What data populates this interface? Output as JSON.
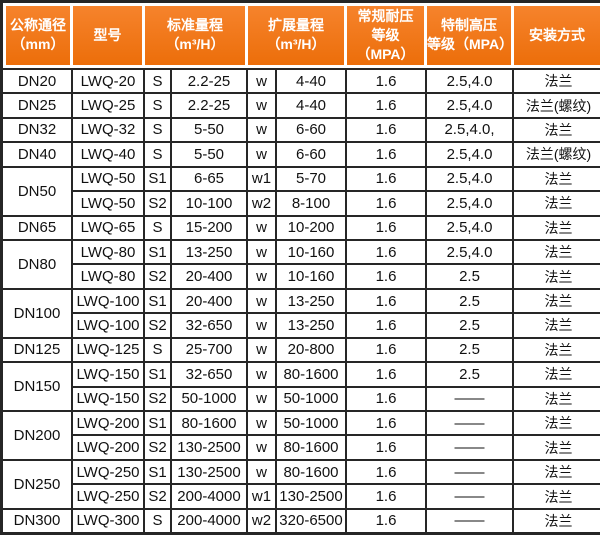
{
  "colors": {
    "header_gradient_top": "#f6832c",
    "header_gradient_bottom": "#ec6e0a",
    "header_text": "#ffffff",
    "grid_line": "#262626",
    "body_text": "#111111"
  },
  "chart_data": {
    "type": "table",
    "title": "",
    "column_labels": [
      "公称通径（mm）",
      "型号",
      "标准量程（m³/H）",
      "扩展量程（m³/H）",
      "常规耐压等级（MPA）",
      "特制高压等级（MPA）",
      "安装方式"
    ],
    "columns": [
      {
        "line1": "公称通径",
        "line2": "（mm）",
        "body_cols": 1
      },
      {
        "line1": "型号",
        "line2": "",
        "body_cols": 1
      },
      {
        "line1": "标准量程",
        "line2": "（m³/H）",
        "body_cols": 2
      },
      {
        "line1": "扩展量程",
        "line2": "（m³/H）",
        "body_cols": 2
      },
      {
        "line1": "常规耐压",
        "line2": "等级（MPA）",
        "body_cols": 1
      },
      {
        "line1": "特制高压",
        "line2": "等级（MPA）",
        "body_cols": 1
      },
      {
        "line1": "安装方式",
        "line2": "",
        "body_cols": 1
      }
    ],
    "rows": [
      {
        "dn": "DN20",
        "dn_span": 1,
        "model": "LWQ-20",
        "range_code": "S",
        "std_range": "2.2-25",
        "ext_code": "w",
        "ext_range": "4-40",
        "normal_mpa": "1.6",
        "high_mpa": "2.5,4.0",
        "install": "法兰"
      },
      {
        "dn": "DN25",
        "dn_span": 1,
        "model": "LWQ-25",
        "range_code": "S",
        "std_range": "2.2-25",
        "ext_code": "w",
        "ext_range": "4-40",
        "normal_mpa": "1.6",
        "high_mpa": "2.5,4.0",
        "install": "法兰(螺纹)"
      },
      {
        "dn": "DN32",
        "dn_span": 1,
        "model": "LWQ-32",
        "range_code": "S",
        "std_range": "5-50",
        "ext_code": "w",
        "ext_range": "6-60",
        "normal_mpa": "1.6",
        "high_mpa": "2.5,4.0,",
        "install": "法兰"
      },
      {
        "dn": "DN40",
        "dn_span": 1,
        "model": "LWQ-40",
        "range_code": "S",
        "std_range": "5-50",
        "ext_code": "w",
        "ext_range": "6-60",
        "normal_mpa": "1.6",
        "high_mpa": "2.5,4.0",
        "install": "法兰(螺纹)"
      },
      {
        "dn": "DN50",
        "dn_span": 2,
        "model": "LWQ-50",
        "range_code": "S1",
        "std_range": "6-65",
        "ext_code": "w1",
        "ext_range": "5-70",
        "normal_mpa": "1.6",
        "high_mpa": "2.5,4.0",
        "install": "法兰"
      },
      {
        "dn": null,
        "dn_span": 0,
        "model": "LWQ-50",
        "range_code": "S2",
        "std_range": "10-100",
        "ext_code": "w2",
        "ext_range": "8-100",
        "normal_mpa": "1.6",
        "high_mpa": "2.5,4.0",
        "install": "法兰"
      },
      {
        "dn": "DN65",
        "dn_span": 1,
        "model": "LWQ-65",
        "range_code": "S",
        "std_range": "15-200",
        "ext_code": "w",
        "ext_range": "10-200",
        "normal_mpa": "1.6",
        "high_mpa": "2.5,4.0",
        "install": "法兰"
      },
      {
        "dn": "DN80",
        "dn_span": 2,
        "model": "LWQ-80",
        "range_code": "S1",
        "std_range": "13-250",
        "ext_code": "w",
        "ext_range": "10-160",
        "normal_mpa": "1.6",
        "high_mpa": "2.5,4.0",
        "install": "法兰"
      },
      {
        "dn": null,
        "dn_span": 0,
        "model": "LWQ-80",
        "range_code": "S2",
        "std_range": "20-400",
        "ext_code": "w",
        "ext_range": "10-160",
        "normal_mpa": "1.6",
        "high_mpa": "2.5",
        "install": "法兰"
      },
      {
        "dn": "DN100",
        "dn_span": 2,
        "model": "LWQ-100",
        "range_code": "S1",
        "std_range": "20-400",
        "ext_code": "w",
        "ext_range": "13-250",
        "normal_mpa": "1.6",
        "high_mpa": "2.5",
        "install": "法兰"
      },
      {
        "dn": null,
        "dn_span": 0,
        "model": "LWQ-100",
        "range_code": "S2",
        "std_range": "32-650",
        "ext_code": "w",
        "ext_range": "13-250",
        "normal_mpa": "1.6",
        "high_mpa": "2.5",
        "install": "法兰"
      },
      {
        "dn": "DN125",
        "dn_span": 1,
        "model": "LWQ-125",
        "range_code": "S",
        "std_range": "25-700",
        "ext_code": "w",
        "ext_range": "20-800",
        "normal_mpa": "1.6",
        "high_mpa": "2.5",
        "install": "法兰"
      },
      {
        "dn": "DN150",
        "dn_span": 2,
        "model": "LWQ-150",
        "range_code": "S1",
        "std_range": "32-650",
        "ext_code": "w",
        "ext_range": "80-1600",
        "normal_mpa": "1.6",
        "high_mpa": "2.5",
        "install": "法兰"
      },
      {
        "dn": null,
        "dn_span": 0,
        "model": "LWQ-150",
        "range_code": "S2",
        "std_range": "50-1000",
        "ext_code": "w",
        "ext_range": "50-1000",
        "normal_mpa": "1.6",
        "high_mpa": "——",
        "install": "法兰"
      },
      {
        "dn": "DN200",
        "dn_span": 2,
        "model": "LWQ-200",
        "range_code": "S1",
        "std_range": "80-1600",
        "ext_code": "w",
        "ext_range": "50-1000",
        "normal_mpa": "1.6",
        "high_mpa": "——",
        "install": "法兰"
      },
      {
        "dn": null,
        "dn_span": 0,
        "model": "LWQ-200",
        "range_code": "S2",
        "std_range": "130-2500",
        "ext_code": "w",
        "ext_range": "80-1600",
        "normal_mpa": "1.6",
        "high_mpa": "——",
        "install": "法兰"
      },
      {
        "dn": "DN250",
        "dn_span": 2,
        "model": "LWQ-250",
        "range_code": "S1",
        "std_range": "130-2500",
        "ext_code": "w",
        "ext_range": "80-1600",
        "normal_mpa": "1.6",
        "high_mpa": "——",
        "install": "法兰"
      },
      {
        "dn": null,
        "dn_span": 0,
        "model": "LWQ-250",
        "range_code": "S2",
        "std_range": "200-4000",
        "ext_code": "w1",
        "ext_range": "130-2500",
        "normal_mpa": "1.6",
        "high_mpa": "——",
        "install": "法兰"
      },
      {
        "dn": "DN300",
        "dn_span": 1,
        "model": "LWQ-300",
        "range_code": "S",
        "std_range": "200-4000",
        "ext_code": "w2",
        "ext_range": "320-6500",
        "normal_mpa": "1.6",
        "high_mpa": "——",
        "install": "法兰"
      }
    ]
  }
}
